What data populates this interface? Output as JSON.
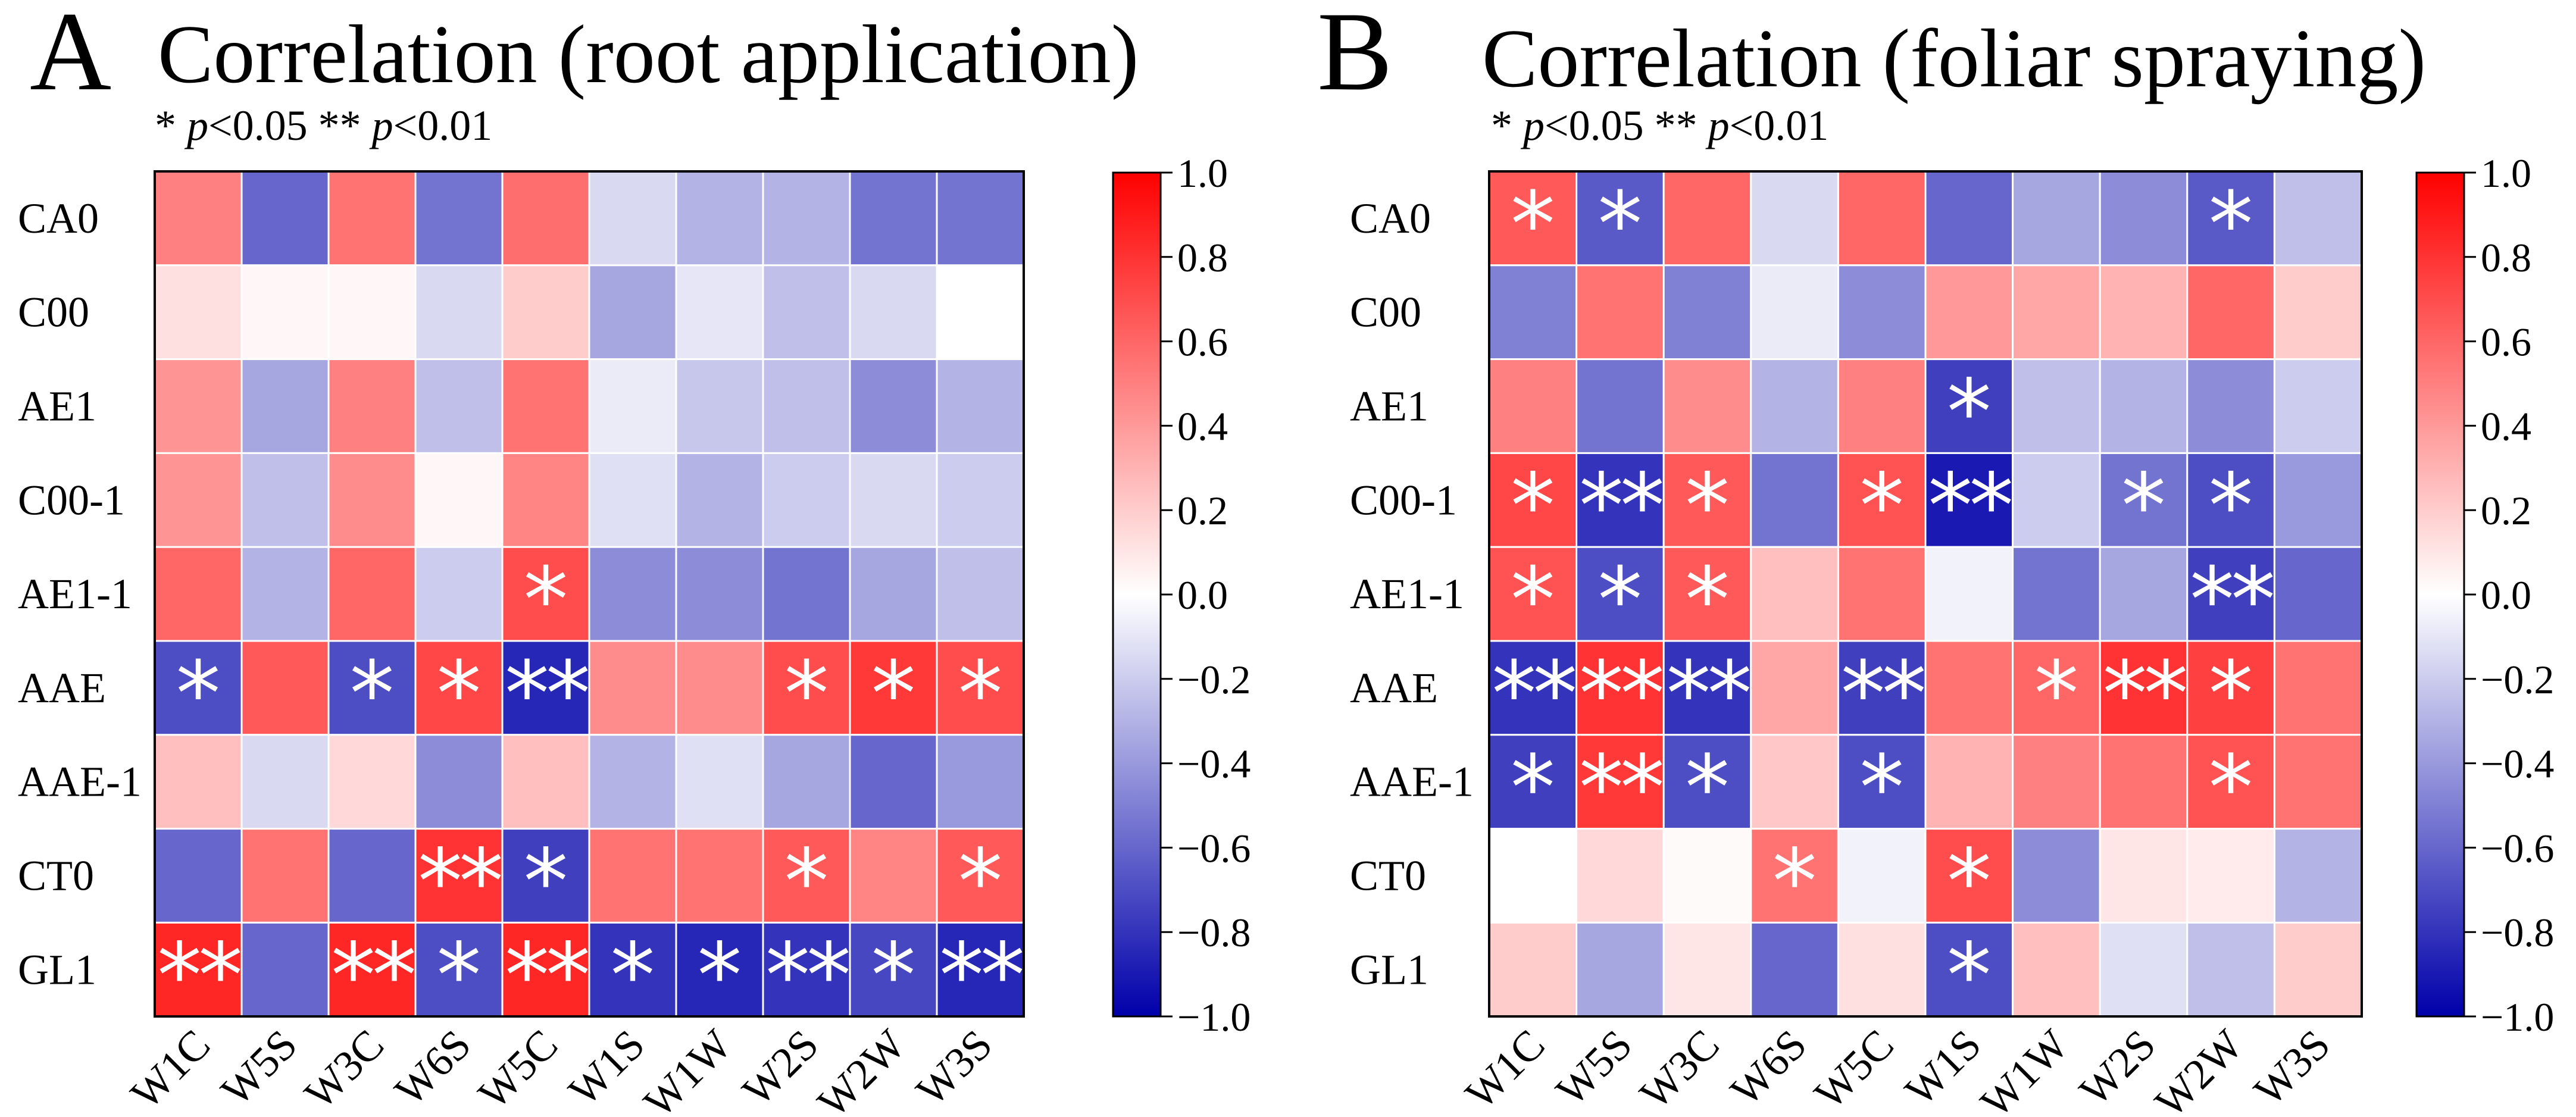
{
  "colors": {
    "negative": "#0000aa",
    "neutral": "#ffffff",
    "positive": "#ff0000",
    "grid_line": "#ffffff",
    "star": "#ffffff"
  },
  "chart_data": [
    {
      "type": "heatmap",
      "panel_letter": "A",
      "title": "Correlation (root application)",
      "significance_note": {
        "single_star": "*",
        "single_p": "p",
        "single_threshold": "<0.05",
        "double_star": "**",
        "double_p": "p",
        "double_threshold": "<0.01"
      },
      "rows": [
        "CA0",
        "C00",
        "AE1",
        "C00-1",
        "AE1-1",
        "AAE",
        "AAE-1",
        "CT0",
        "GL1"
      ],
      "columns": [
        "W1C",
        "W5S",
        "W3C",
        "W6S",
        "W5C",
        "W1S",
        "W1W",
        "W2S",
        "W2W",
        "W3S"
      ],
      "values": [
        [
          0.5,
          -0.6,
          0.55,
          -0.55,
          0.57,
          -0.15,
          -0.3,
          -0.3,
          -0.55,
          -0.55
        ],
        [
          0.12,
          0.03,
          0.03,
          -0.15,
          0.2,
          -0.35,
          -0.1,
          -0.25,
          -0.15,
          0.0
        ],
        [
          0.42,
          -0.35,
          0.5,
          -0.25,
          0.55,
          -0.08,
          -0.22,
          -0.25,
          -0.45,
          -0.3
        ],
        [
          0.42,
          -0.25,
          0.45,
          0.03,
          0.48,
          -0.12,
          -0.3,
          -0.2,
          -0.15,
          -0.2
        ],
        [
          0.6,
          -0.3,
          0.6,
          -0.2,
          0.7,
          -0.45,
          -0.45,
          -0.55,
          -0.35,
          -0.25
        ],
        [
          -0.7,
          0.65,
          -0.7,
          0.72,
          -0.85,
          0.45,
          0.45,
          0.7,
          0.78,
          0.7
        ],
        [
          0.25,
          -0.15,
          0.15,
          -0.45,
          0.25,
          -0.3,
          -0.12,
          -0.35,
          -0.6,
          -0.4
        ],
        [
          -0.6,
          0.55,
          -0.6,
          0.8,
          -0.75,
          0.55,
          0.55,
          0.65,
          0.48,
          0.65
        ],
        [
          0.85,
          -0.6,
          0.85,
          -0.7,
          0.85,
          -0.8,
          -0.85,
          -0.8,
          -0.72,
          -0.85
        ]
      ],
      "significance": [
        [
          "",
          "",
          "",
          "",
          "",
          "",
          "",
          "",
          "",
          ""
        ],
        [
          "",
          "",
          "",
          "",
          "",
          "",
          "",
          "",
          "",
          ""
        ],
        [
          "",
          "",
          "",
          "",
          "",
          "",
          "",
          "",
          "",
          ""
        ],
        [
          "",
          "",
          "",
          "",
          "",
          "",
          "",
          "",
          "",
          ""
        ],
        [
          "",
          "",
          "",
          "",
          "*",
          "",
          "",
          "",
          "",
          ""
        ],
        [
          "*",
          "",
          "*",
          "*",
          "**",
          "",
          "",
          "*",
          "*",
          "*"
        ],
        [
          "",
          "",
          "",
          "",
          "",
          "",
          "",
          "",
          "",
          ""
        ],
        [
          "",
          "",
          "",
          "**",
          "*",
          "",
          "",
          "*",
          "",
          "*"
        ],
        [
          "**",
          "",
          "**",
          "*",
          "**",
          "*",
          "*",
          "**",
          "*",
          "**"
        ]
      ],
      "colorbar": {
        "vmin": -1.0,
        "vmax": 1.0,
        "ticks": [
          "1.0",
          "0.8",
          "0.6",
          "0.4",
          "0.2",
          "0.0",
          "−0.2",
          "−0.4",
          "−0.6",
          "−0.8",
          "−1.0"
        ]
      }
    },
    {
      "type": "heatmap",
      "panel_letter": "B",
      "title": "Correlation (foliar spraying)",
      "significance_note": {
        "single_star": "*",
        "single_p": "p",
        "single_threshold": "<0.05",
        "double_star": "**",
        "double_p": "p",
        "double_threshold": "<0.01"
      },
      "rows": [
        "CA0",
        "C00",
        "AE1",
        "C00-1",
        "AE1-1",
        "AAE",
        "AAE-1",
        "CT0",
        "GL1"
      ],
      "columns": [
        "W1C",
        "W5S",
        "W3C",
        "W6S",
        "W5C",
        "W1S",
        "W1W",
        "W2S",
        "W2W",
        "W3S"
      ],
      "values": [
        [
          0.65,
          -0.65,
          0.6,
          -0.15,
          0.6,
          -0.6,
          -0.35,
          -0.45,
          -0.65,
          -0.25
        ],
        [
          -0.5,
          0.55,
          -0.5,
          -0.08,
          -0.45,
          0.4,
          0.35,
          0.3,
          0.6,
          0.2
        ],
        [
          0.5,
          -0.55,
          0.45,
          -0.3,
          0.5,
          -0.75,
          -0.25,
          -0.3,
          -0.45,
          -0.2
        ],
        [
          0.72,
          -0.8,
          0.65,
          -0.55,
          0.68,
          -0.9,
          -0.2,
          -0.55,
          -0.7,
          -0.4
        ],
        [
          0.68,
          -0.7,
          0.65,
          0.25,
          0.55,
          -0.05,
          -0.55,
          -0.35,
          -0.75,
          -0.6
        ],
        [
          -0.8,
          0.8,
          -0.8,
          0.35,
          -0.75,
          0.55,
          0.6,
          0.8,
          0.75,
          0.55
        ],
        [
          -0.75,
          0.78,
          -0.7,
          0.22,
          -0.7,
          0.3,
          0.5,
          0.55,
          0.68,
          0.55
        ],
        [
          0.0,
          0.15,
          0.02,
          0.55,
          -0.05,
          0.7,
          -0.45,
          0.1,
          0.08,
          -0.3
        ],
        [
          0.2,
          -0.35,
          0.1,
          -0.6,
          0.12,
          -0.7,
          0.25,
          -0.12,
          -0.25,
          0.2
        ]
      ],
      "significance": [
        [
          "*",
          "*",
          "",
          "",
          "",
          "",
          "",
          "",
          "*",
          ""
        ],
        [
          "",
          "",
          "",
          "",
          "",
          "",
          "",
          "",
          "",
          ""
        ],
        [
          "",
          "",
          "",
          "",
          "",
          "*",
          "",
          "",
          "",
          ""
        ],
        [
          "*",
          "**",
          "*",
          "",
          "*",
          "**",
          "",
          "*",
          "*",
          ""
        ],
        [
          "*",
          "*",
          "*",
          "",
          "",
          "",
          "",
          "",
          "**",
          ""
        ],
        [
          "**",
          "**",
          "**",
          "",
          "**",
          "",
          "*",
          "**",
          "*",
          ""
        ],
        [
          "*",
          "**",
          "*",
          "",
          "*",
          "",
          "",
          "",
          "*",
          ""
        ],
        [
          "",
          "",
          "",
          "*",
          "",
          "*",
          "",
          "",
          "",
          ""
        ],
        [
          "",
          "",
          "",
          "",
          "",
          "*",
          "",
          "",
          "",
          ""
        ]
      ],
      "colorbar": {
        "vmin": -1.0,
        "vmax": 1.0,
        "ticks": [
          "1.0",
          "0.8",
          "0.6",
          "0.4",
          "0.2",
          "0.0",
          "−0.2",
          "−0.4",
          "−0.6",
          "−0.8",
          "−1.0"
        ]
      }
    }
  ]
}
